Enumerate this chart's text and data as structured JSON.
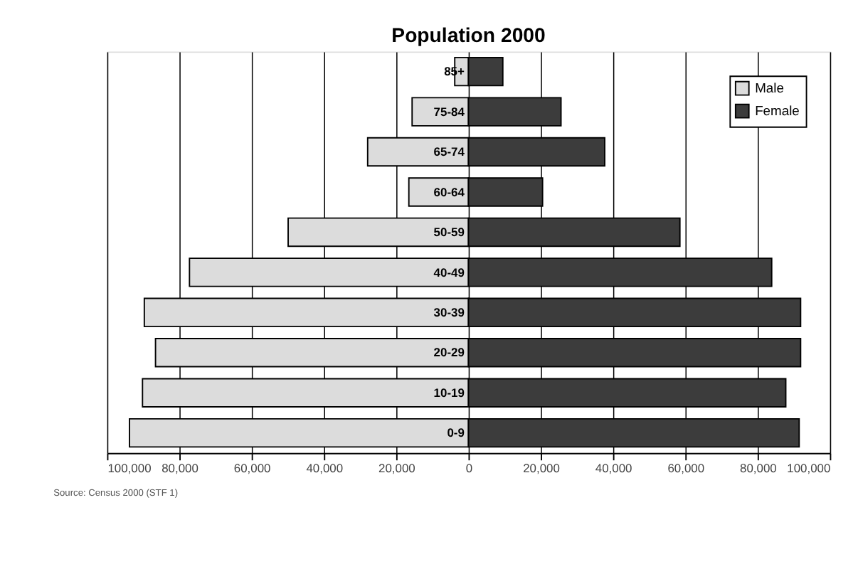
{
  "chart_data": {
    "type": "bar",
    "orientation": "horizontal",
    "stacked": true,
    "title": "Population 2000",
    "categories": [
      "85+",
      "75-84",
      "65-74",
      "60-64",
      "50-59",
      "40-49",
      "30-39",
      "20-29",
      "10-19",
      "0-9"
    ],
    "series": [
      {
        "name": "Male",
        "color": "#dcdcdc",
        "values": [
          -3800,
          -15600,
          -27900,
          -16500,
          -49900,
          -77200,
          -89700,
          -86600,
          -90200,
          -93800
        ]
      },
      {
        "name": "Female",
        "color": "#3c3c3c",
        "values": [
          9500,
          25600,
          37700,
          20500,
          58500,
          83900,
          91900,
          91900,
          87800,
          91500
        ]
      }
    ],
    "xlim": [
      -100000,
      100000
    ],
    "xticks": [
      {
        "value": -100000,
        "label": "100,000"
      },
      {
        "value": -80000,
        "label": "80,000"
      },
      {
        "value": -60000,
        "label": "60,000"
      },
      {
        "value": -40000,
        "label": "40,000"
      },
      {
        "value": -20000,
        "label": "20,000"
      },
      0,
      {
        "value": 20000,
        "label": "20,000"
      },
      {
        "value": 40000,
        "label": "40,000"
      },
      {
        "value": 60000,
        "label": "60,000"
      },
      {
        "value": 80000,
        "label": "80,000"
      },
      {
        "value": 100000,
        "label": "100,000"
      }
    ],
    "grid": "x",
    "legend": "top right",
    "annotations": [
      "Source: Census 2000 (STF 1)"
    ]
  }
}
